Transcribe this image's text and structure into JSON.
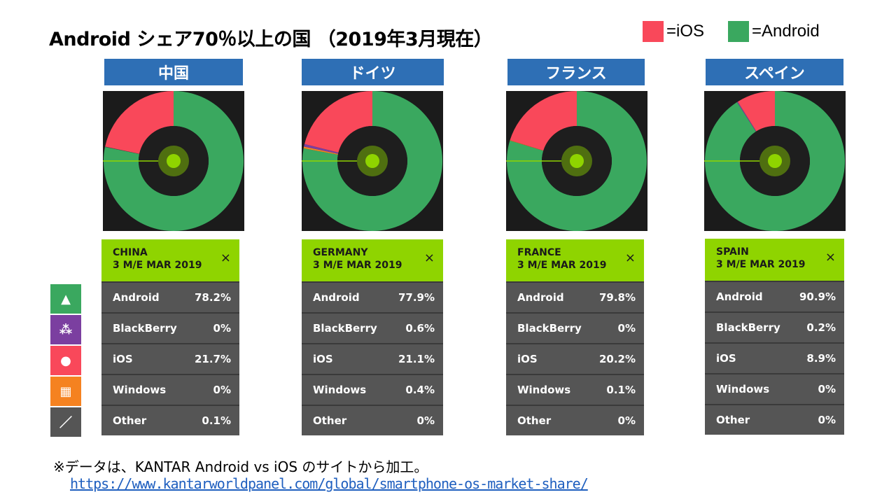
{
  "title": "Android シェア70％以上の国 （2019年3月現在）",
  "legend": [
    {
      "label": "=iOS",
      "color": "#f9485a"
    },
    {
      "label": "=Android",
      "color": "#3aa85f"
    }
  ],
  "colors": {
    "android": "#3aa85f",
    "ios": "#f9485a",
    "blackberry": "#7b3fa0",
    "windows": "#f58220",
    "other": "#555555",
    "header": "#8fd400",
    "label_bg": "#2e6fb5"
  },
  "side_icons": [
    {
      "name": "android",
      "icon": "android-icon",
      "color": "#3aa85f",
      "glyph": "▲"
    },
    {
      "name": "blackberry",
      "icon": "blackberry-icon",
      "color": "#7b3fa0",
      "glyph": "⁂"
    },
    {
      "name": "ios",
      "icon": "apple-icon",
      "color": "#f9485a",
      "glyph": "●"
    },
    {
      "name": "windows",
      "icon": "windows-icon",
      "color": "#f58220",
      "glyph": "▦"
    },
    {
      "name": "other",
      "icon": "slash-icon",
      "color": "#555555",
      "glyph": "／"
    }
  ],
  "panels": [
    {
      "label": "中国",
      "header_line1": "CHINA",
      "header_line2": "3 M/E MAR 2019",
      "close": "×",
      "rows": [
        [
          "Android",
          "78.2%"
        ],
        [
          "BlackBerry",
          "0%"
        ],
        [
          "iOS",
          "21.7%"
        ],
        [
          "Windows",
          "0%"
        ],
        [
          "Other",
          "0.1%"
        ]
      ]
    },
    {
      "label": "ドイツ",
      "header_line1": "GERMANY",
      "header_line2": "3 M/E MAR 2019",
      "close": "×",
      "rows": [
        [
          "Android",
          "77.9%"
        ],
        [
          "BlackBerry",
          "0.6%"
        ],
        [
          "iOS",
          "21.1%"
        ],
        [
          "Windows",
          "0.4%"
        ],
        [
          "Other",
          "0%"
        ]
      ]
    },
    {
      "label": "フランス",
      "header_line1": "FRANCE",
      "header_line2": "3 M/E MAR 2019",
      "close": "×",
      "rows": [
        [
          "Android",
          "79.8%"
        ],
        [
          "BlackBerry",
          "0%"
        ],
        [
          "iOS",
          "20.2%"
        ],
        [
          "Windows",
          "0.1%"
        ],
        [
          "Other",
          "0%"
        ]
      ]
    },
    {
      "label": "スペイン",
      "header_line1": "SPAIN",
      "header_line2": "3 M/E MAR 2019",
      "close": "×",
      "rows": [
        [
          "Android",
          "90.9%"
        ],
        [
          "BlackBerry",
          "0.2%"
        ],
        [
          "iOS",
          "8.9%"
        ],
        [
          "Windows",
          "0%"
        ],
        [
          "Other",
          "0%"
        ]
      ]
    }
  ],
  "chart_data": [
    {
      "type": "pie",
      "title": "中国",
      "categories": [
        "Android",
        "BlackBerry",
        "iOS",
        "Windows",
        "Other"
      ],
      "values": [
        78.2,
        0,
        21.7,
        0,
        0.1
      ]
    },
    {
      "type": "pie",
      "title": "ドイツ",
      "categories": [
        "Android",
        "BlackBerry",
        "iOS",
        "Windows",
        "Other"
      ],
      "values": [
        77.9,
        0.6,
        21.1,
        0.4,
        0
      ]
    },
    {
      "type": "pie",
      "title": "フランス",
      "categories": [
        "Android",
        "BlackBerry",
        "iOS",
        "Windows",
        "Other"
      ],
      "values": [
        79.8,
        0,
        20.2,
        0.1,
        0
      ]
    },
    {
      "type": "pie",
      "title": "スペイン",
      "categories": [
        "Android",
        "BlackBerry",
        "iOS",
        "Windows",
        "Other"
      ],
      "values": [
        90.9,
        0.2,
        8.9,
        0,
        0
      ]
    }
  ],
  "footnote": "※データは、KANTAR Android vs iOS のサイトから加工。",
  "link": "https://www.kantarworldpanel.com/global/smartphone-os-market-share/"
}
